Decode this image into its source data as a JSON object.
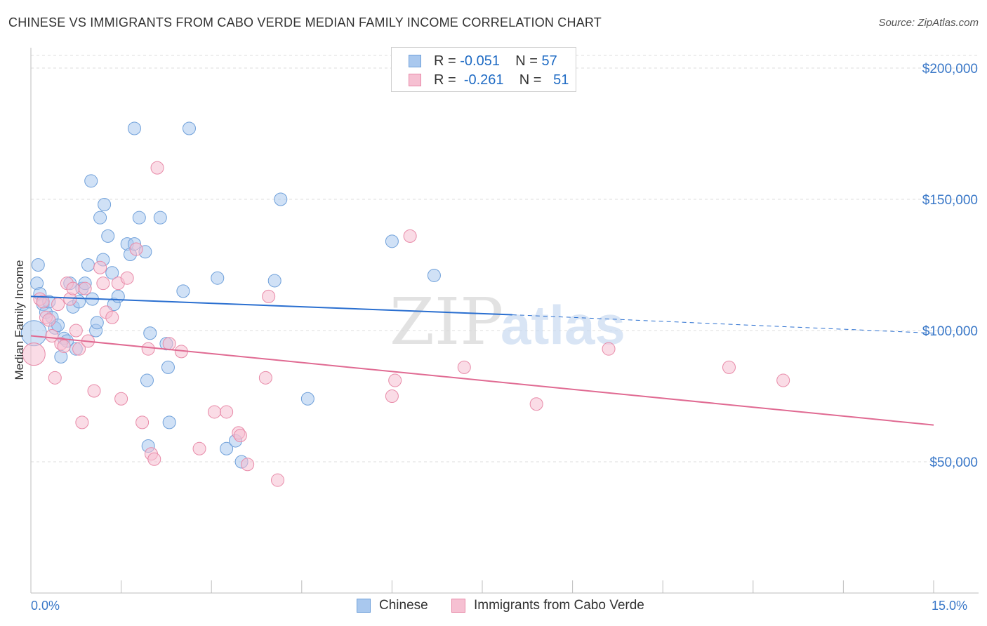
{
  "title": "CHINESE VS IMMIGRANTS FROM CABO VERDE MEDIAN FAMILY INCOME CORRELATION CHART",
  "source": "Source: ZipAtlas.com",
  "watermark": {
    "zip": "ZIP",
    "atlas": "atlas"
  },
  "legend": {
    "rows": [
      {
        "r_label": "R = ",
        "r_value": "-0.051",
        "n_label": "N = ",
        "n_value": "57",
        "color": "#a9c8ee",
        "border": "#6fa0da"
      },
      {
        "r_label": "R = ",
        "r_value": "-0.261",
        "n_label": "N = ",
        "n_value": "51",
        "color": "#f6c0d2",
        "border": "#e88aa8"
      }
    ]
  },
  "bottom_legend": {
    "series1": "Chinese",
    "series2": "Immigrants from Cabo Verde"
  },
  "colors": {
    "blue_line": "#2a6fd0",
    "pink_line": "#e06a92",
    "blue_fill": "#a9c8ee",
    "pink_fill": "#f6c0d2",
    "axis_text": "#3a78c8"
  },
  "chart_data": {
    "type": "scatter",
    "title": "CHINESE VS IMMIGRANTS FROM CABO VERDE MEDIAN FAMILY INCOME CORRELATION CHART",
    "xlabel": "",
    "ylabel": "Median Family Income",
    "xlim": [
      0,
      15
    ],
    "ylim": [
      0,
      200000
    ],
    "x_tick_labels": [
      "0.0%",
      "15.0%"
    ],
    "y_ticks": [
      50000,
      100000,
      150000,
      200000
    ],
    "y_tick_labels": [
      "$50,000",
      "$100,000",
      "$150,000",
      "$200,000"
    ],
    "grid": "horizontal dashed",
    "legend_position": "top-center",
    "series": [
      {
        "name": "Chinese",
        "r": -0.051,
        "n": 57,
        "trend": {
          "x0": 0.0,
          "y0": 113000,
          "x1": 8.0,
          "y1": 106000,
          "dashed_to_x": 15.0,
          "dashed_to_y": 99000
        },
        "points": [
          [
            0.05,
            99000,
            18
          ],
          [
            0.1,
            118000,
            9
          ],
          [
            0.12,
            125000,
            9
          ],
          [
            0.15,
            114000,
            9
          ],
          [
            0.2,
            110000,
            9
          ],
          [
            0.25,
            107000,
            9
          ],
          [
            0.3,
            111000,
            9
          ],
          [
            0.35,
            105000,
            9
          ],
          [
            0.4,
            101000,
            9
          ],
          [
            0.45,
            102000,
            9
          ],
          [
            0.5,
            90000,
            9
          ],
          [
            0.55,
            97000,
            9
          ],
          [
            0.6,
            96000,
            9
          ],
          [
            0.65,
            118000,
            9
          ],
          [
            0.7,
            109000,
            9
          ],
          [
            0.75,
            93000,
            9
          ],
          [
            0.8,
            111000,
            9
          ],
          [
            0.85,
            116000,
            9
          ],
          [
            0.9,
            118000,
            9
          ],
          [
            0.95,
            125000,
            9
          ],
          [
            1.0,
            157000,
            9
          ],
          [
            1.02,
            112000,
            9
          ],
          [
            1.08,
            100000,
            9
          ],
          [
            1.1,
            103000,
            9
          ],
          [
            1.15,
            143000,
            9
          ],
          [
            1.2,
            127000,
            9
          ],
          [
            1.22,
            148000,
            9
          ],
          [
            1.28,
            136000,
            9
          ],
          [
            1.35,
            122000,
            9
          ],
          [
            1.38,
            110000,
            9
          ],
          [
            1.45,
            113000,
            9
          ],
          [
            1.6,
            133000,
            9
          ],
          [
            1.65,
            129000,
            9
          ],
          [
            1.72,
            133000,
            9
          ],
          [
            1.72,
            177000,
            9
          ],
          [
            1.8,
            143000,
            9
          ],
          [
            1.9,
            130000,
            9
          ],
          [
            1.93,
            81000,
            9
          ],
          [
            1.95,
            56000,
            9
          ],
          [
            1.98,
            99000,
            9
          ],
          [
            2.15,
            143000,
            9
          ],
          [
            2.25,
            95000,
            9
          ],
          [
            2.28,
            86000,
            9
          ],
          [
            2.3,
            65000,
            9
          ],
          [
            2.53,
            115000,
            9
          ],
          [
            2.63,
            177000,
            9
          ],
          [
            3.1,
            120000,
            9
          ],
          [
            3.25,
            55000,
            9
          ],
          [
            3.4,
            58000,
            9
          ],
          [
            3.5,
            50000,
            9
          ],
          [
            4.05,
            119000,
            9
          ],
          [
            4.15,
            150000,
            9
          ],
          [
            4.6,
            74000,
            9
          ],
          [
            6.0,
            134000,
            9
          ],
          [
            6.7,
            121000,
            9
          ]
        ]
      },
      {
        "name": "Immigrants from Cabo Verde",
        "r": -0.261,
        "n": 51,
        "trend": {
          "x0": 0.0,
          "y0": 98000,
          "x1": 15.0,
          "y1": 64000
        },
        "points": [
          [
            0.05,
            91000,
            16
          ],
          [
            0.15,
            112000,
            9
          ],
          [
            0.2,
            111000,
            9
          ],
          [
            0.25,
            105000,
            9
          ],
          [
            0.3,
            104000,
            9
          ],
          [
            0.35,
            98000,
            9
          ],
          [
            0.4,
            82000,
            9
          ],
          [
            0.45,
            110000,
            9
          ],
          [
            0.5,
            95000,
            9
          ],
          [
            0.55,
            94000,
            9
          ],
          [
            0.6,
            118000,
            9
          ],
          [
            0.65,
            112000,
            9
          ],
          [
            0.7,
            116000,
            9
          ],
          [
            0.75,
            100000,
            9
          ],
          [
            0.8,
            93000,
            9
          ],
          [
            0.85,
            65000,
            9
          ],
          [
            0.9,
            116000,
            9
          ],
          [
            0.95,
            96000,
            9
          ],
          [
            1.05,
            77000,
            9
          ],
          [
            1.15,
            124000,
            9
          ],
          [
            1.2,
            118000,
            9
          ],
          [
            1.25,
            107000,
            9
          ],
          [
            1.35,
            105000,
            9
          ],
          [
            1.45,
            118000,
            9
          ],
          [
            1.5,
            74000,
            9
          ],
          [
            1.6,
            120000,
            9
          ],
          [
            1.75,
            131000,
            9
          ],
          [
            1.85,
            65000,
            9
          ],
          [
            1.95,
            93000,
            9
          ],
          [
            2.0,
            53000,
            9
          ],
          [
            2.05,
            51000,
            9
          ],
          [
            2.1,
            162000,
            9
          ],
          [
            2.3,
            95000,
            9
          ],
          [
            2.5,
            92000,
            9
          ],
          [
            2.8,
            55000,
            9
          ],
          [
            3.05,
            69000,
            9
          ],
          [
            3.25,
            69000,
            9
          ],
          [
            3.45,
            61000,
            9
          ],
          [
            3.48,
            60000,
            9
          ],
          [
            3.6,
            49000,
            9
          ],
          [
            3.9,
            82000,
            9
          ],
          [
            3.95,
            113000,
            9
          ],
          [
            4.1,
            43000,
            9
          ],
          [
            6.0,
            75000,
            9
          ],
          [
            6.05,
            81000,
            9
          ],
          [
            6.3,
            136000,
            9
          ],
          [
            7.2,
            86000,
            9
          ],
          [
            8.4,
            72000,
            9
          ],
          [
            9.6,
            93000,
            9
          ],
          [
            11.6,
            86000,
            9
          ],
          [
            12.5,
            81000,
            9
          ]
        ]
      }
    ]
  }
}
